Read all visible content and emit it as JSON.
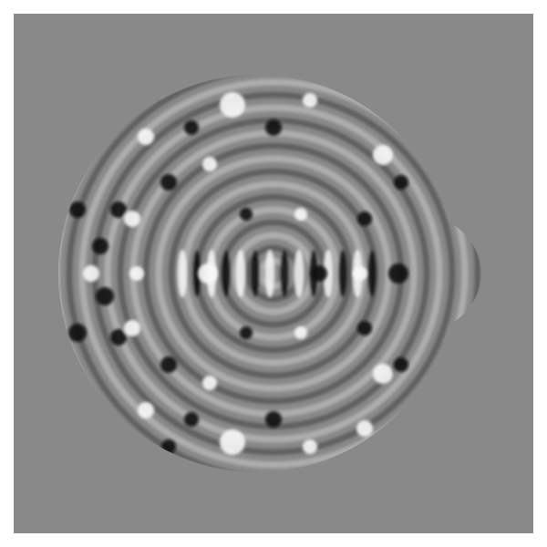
{
  "image": {
    "subject": "wave-interference-pattern",
    "colors": {
      "page_background": "#ffffff",
      "panel_background": "#898989",
      "bright_fringe": "#f8f8f8",
      "dark_fringe": "#0a0a0a"
    }
  }
}
